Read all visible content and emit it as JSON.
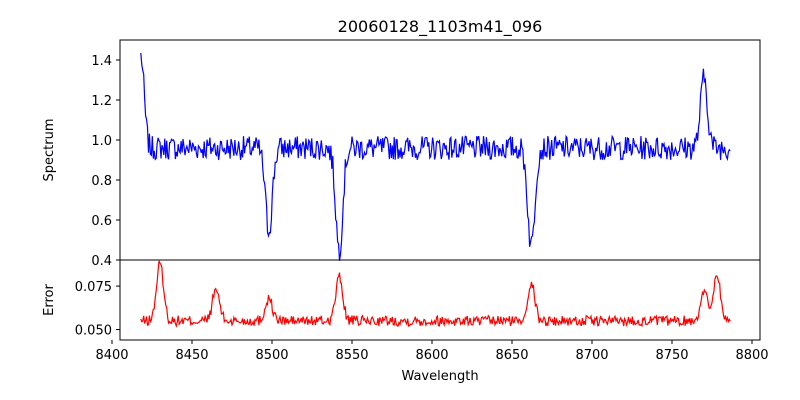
{
  "chart_data": [
    {
      "type": "line",
      "panel": "spectrum",
      "title": "20060128_1103m41_096",
      "ylabel": "Spectrum",
      "xlim": [
        8405,
        8805
      ],
      "ylim": [
        0.4,
        1.5
      ],
      "yticks": [
        "0.4",
        "0.6",
        "0.8",
        "1.0",
        "1.2",
        "1.4"
      ],
      "line_color": "#0000ff",
      "x_range": [
        8418,
        8787
      ],
      "baseline": 0.96,
      "noise_amplitude": 0.06,
      "features": [
        {
          "x": 8418,
          "y": 1.45
        },
        {
          "x": 8420,
          "y": 0.92
        },
        {
          "x": 8498,
          "y": 0.55
        },
        {
          "x": 8542,
          "y": 0.45
        },
        {
          "x": 8662,
          "y": 0.47
        },
        {
          "x": 8770,
          "y": 1.31
        }
      ]
    },
    {
      "type": "line",
      "panel": "error",
      "ylabel": "Error",
      "xlabel": "Wavelength",
      "xlim": [
        8405,
        8805
      ],
      "ylim": [
        0.044,
        0.09
      ],
      "yticks": [
        "0.050",
        "0.075"
      ],
      "xticks": [
        "8400",
        "8450",
        "8500",
        "8550",
        "8600",
        "8650",
        "8700",
        "8750",
        "8800"
      ],
      "line_color": "#ff0000",
      "x_range": [
        8418,
        8787
      ],
      "baseline": 0.055,
      "noise_amplitude": 0.003,
      "features": [
        {
          "x": 8430,
          "y": 0.088
        },
        {
          "x": 8465,
          "y": 0.073
        },
        {
          "x": 8498,
          "y": 0.068
        },
        {
          "x": 8542,
          "y": 0.08
        },
        {
          "x": 8662,
          "y": 0.077
        },
        {
          "x": 8770,
          "y": 0.072
        },
        {
          "x": 8778,
          "y": 0.082
        }
      ]
    }
  ]
}
